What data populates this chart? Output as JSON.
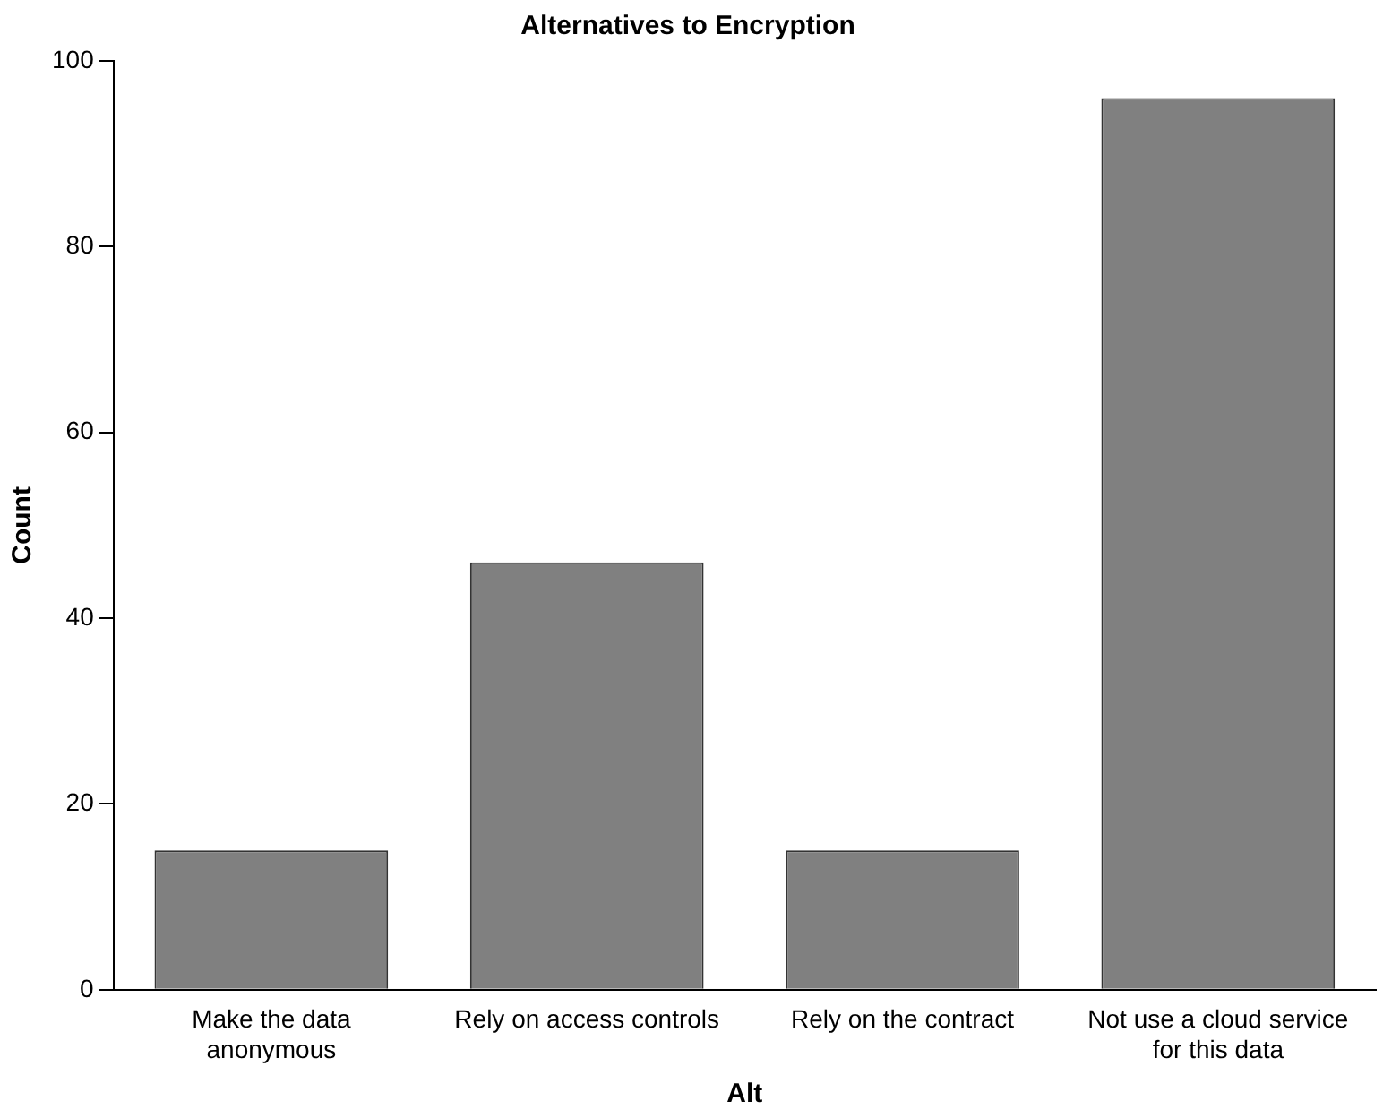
{
  "chart_data": {
    "type": "bar",
    "title": "Alternatives to Encryption",
    "xlabel": "Alt",
    "ylabel": "Count",
    "categories": [
      "Make the data anonymous",
      "Rely on access controls",
      "Rely on the contract",
      "Not use a cloud service for this data"
    ],
    "values": [
      15,
      46,
      15,
      96
    ],
    "color": "#808080",
    "ylim": [
      0,
      100
    ],
    "yticks": [
      0,
      20,
      40,
      60,
      80,
      100
    ],
    "grid": false,
    "legend": false
  }
}
